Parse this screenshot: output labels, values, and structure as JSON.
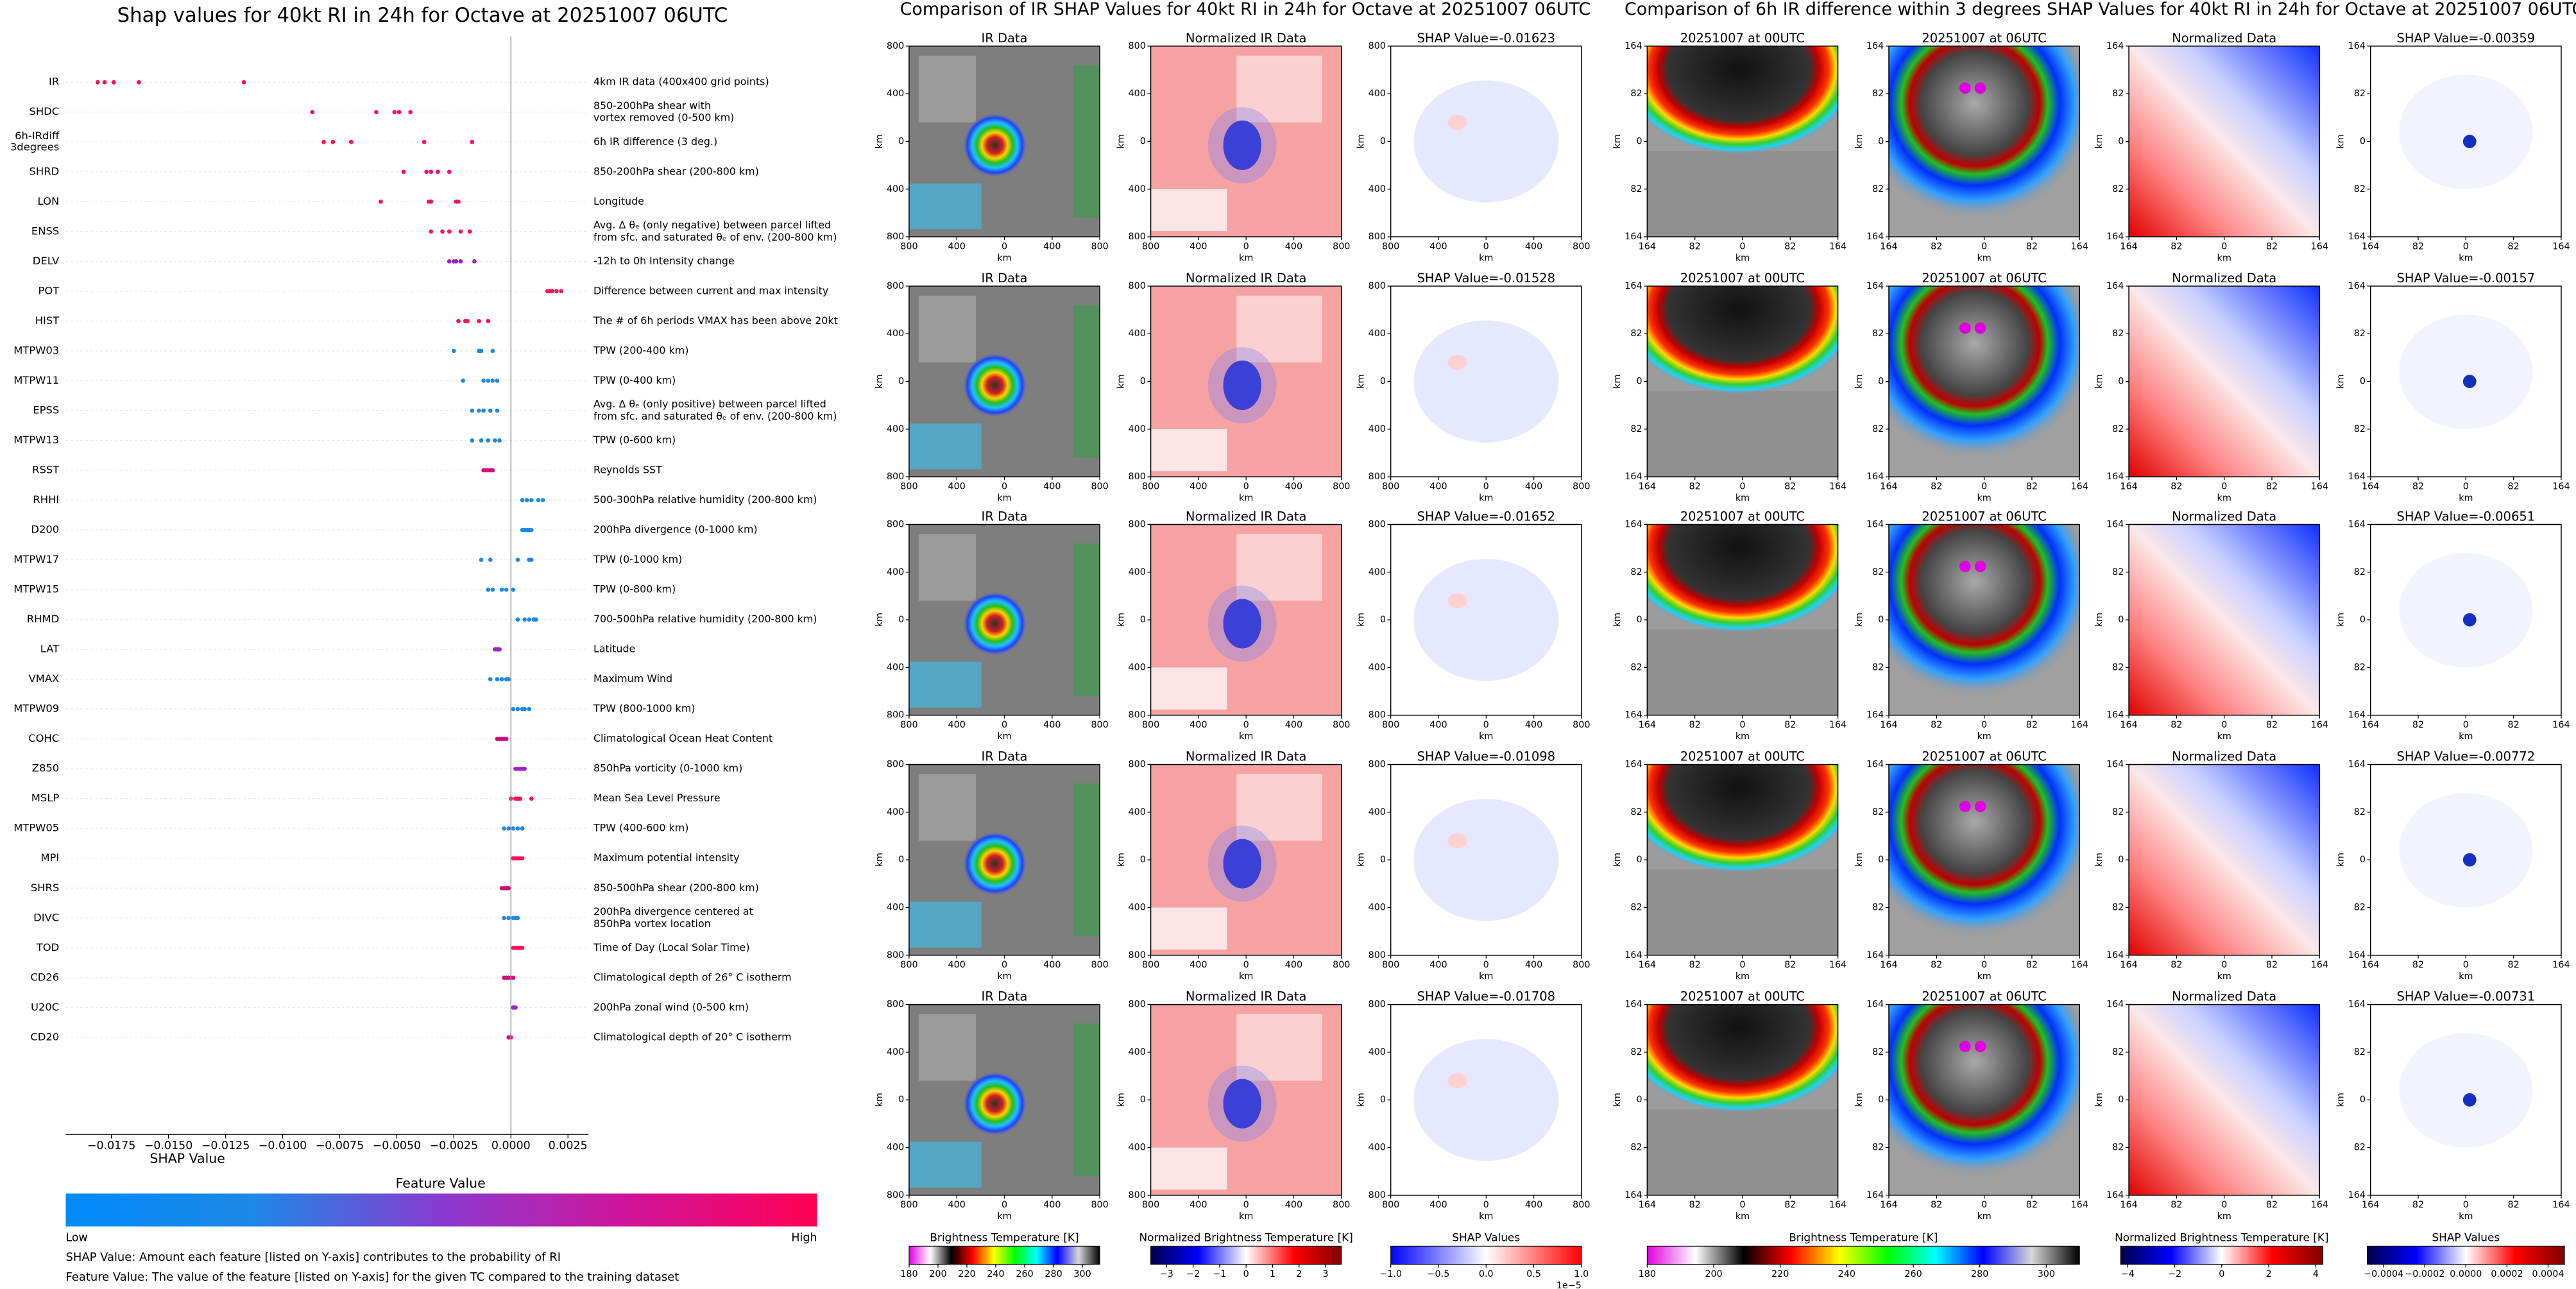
{
  "chart_data": [
    {
      "type": "beeswarm",
      "title": "Shap values for 40kt RI in 24h for Octave at 20251007 06UTC",
      "xlabel": "SHAP Value",
      "xlim": [
        -0.0195,
        0.0034
      ],
      "xticks": [
        {
          "value": -0.0175,
          "label": "−0.0175"
        },
        {
          "value": -0.015,
          "label": "−0.0150"
        },
        {
          "value": -0.0125,
          "label": "−0.0125"
        },
        {
          "value": -0.01,
          "label": "−0.0100"
        },
        {
          "value": -0.0075,
          "label": "−0.0075"
        },
        {
          "value": -0.005,
          "label": "−0.0050"
        },
        {
          "value": -0.0025,
          "label": "−0.0025"
        },
        {
          "value": 0,
          "label": "0.0000"
        },
        {
          "value": 0.0025,
          "label": "0.0025"
        }
      ],
      "features": [
        {
          "name": [
            "IR"
          ],
          "description": [
            "4km IR data (400x400 grid points)"
          ],
          "color": "#ff0d57",
          "values": [
            -0.0181,
            -0.0178,
            -0.0174,
            -0.0163,
            -0.0117
          ]
        },
        {
          "name": [
            "SHDC"
          ],
          "description": [
            "850-200hPa shear with",
            "vortex removed (0-500 km)"
          ],
          "color": "#ff0d57",
          "values": [
            -0.0087,
            -0.0059,
            -0.0051,
            -0.0049,
            -0.0044
          ]
        },
        {
          "name": [
            "6h-IRdiff",
            "3degrees"
          ],
          "description": [
            "6h IR difference (3 deg.)"
          ],
          "color": "#ff0d57",
          "values": [
            -0.0082,
            -0.0078,
            -0.007,
            -0.0038,
            -0.0017
          ]
        },
        {
          "name": [
            "SHRD"
          ],
          "description": [
            "850-200hPa shear (200-800 km)"
          ],
          "color": "#f5077a",
          "values": [
            -0.0047,
            -0.0037,
            -0.0035,
            -0.0032,
            -0.0027
          ]
        },
        {
          "name": [
            "LON"
          ],
          "description": [
            "Longitude"
          ],
          "color": "#ff0d57",
          "values": [
            -0.0057,
            -0.0036,
            -0.0035,
            -0.0024,
            -0.0023
          ]
        },
        {
          "name": [
            "ENSS"
          ],
          "description": [
            "Avg. Δ θₑ (only negative) between parcel lifted",
            "from sfc. and saturated θₑ of env. (200-800 km)"
          ],
          "color": "#ff0d57",
          "values": [
            -0.0035,
            -0.003,
            -0.0027,
            -0.0022,
            -0.0018
          ]
        },
        {
          "name": [
            "DELV"
          ],
          "description": [
            "-12h to 0h Intensity change"
          ],
          "color": "#a020d0",
          "values": [
            -0.0027,
            -0.0025,
            -0.0024,
            -0.0022,
            -0.0016
          ]
        },
        {
          "name": [
            "POT"
          ],
          "description": [
            "Difference between current and max intensity"
          ],
          "color": "#ff0d57",
          "values": [
            0.0016,
            0.0017,
            0.0018,
            0.002,
            0.0022
          ]
        },
        {
          "name": [
            "HIST"
          ],
          "description": [
            "The # of 6h periods VMAX has been above 20kt"
          ],
          "color": "#ff0d57",
          "values": [
            -0.0023,
            -0.002,
            -0.0019,
            -0.0014,
            -0.001
          ]
        },
        {
          "name": [
            "MTPW03"
          ],
          "description": [
            "TPW (200-400 km)"
          ],
          "color": "#1e88e5",
          "values": [
            -0.0025,
            -0.0014,
            -0.0014,
            -0.0013,
            -0.0008
          ]
        },
        {
          "name": [
            "MTPW11"
          ],
          "description": [
            "TPW (0-400 km)"
          ],
          "color": "#1e88e5",
          "values": [
            -0.0021,
            -0.0012,
            -0.001,
            -0.0008,
            -0.0006
          ]
        },
        {
          "name": [
            "EPSS"
          ],
          "description": [
            "Avg. Δ θₑ (only positive) between parcel lifted",
            "from sfc. and saturated θₑ of env. (200-800 km)"
          ],
          "color": "#1e88e5",
          "values": [
            -0.0017,
            -0.0014,
            -0.0012,
            -0.0009,
            -0.0006
          ]
        },
        {
          "name": [
            "MTPW13"
          ],
          "description": [
            "TPW (0-600 km)"
          ],
          "color": "#1e88e5",
          "values": [
            -0.0017,
            -0.0013,
            -0.001,
            -0.0007,
            -0.0005
          ]
        },
        {
          "name": [
            "RSST"
          ],
          "description": [
            "Reynolds SST"
          ],
          "color": "#d6087e",
          "values": [
            -0.0012,
            -0.0011,
            -0.001,
            -0.0009,
            -0.0008
          ]
        },
        {
          "name": [
            "RHHI"
          ],
          "description": [
            "500-300hPa relative humidity (200-800 km)"
          ],
          "color": "#1e88e5",
          "values": [
            0.0005,
            0.0007,
            0.0009,
            0.0012,
            0.0014
          ]
        },
        {
          "name": [
            "D200"
          ],
          "description": [
            "200hPa divergence (0-1000 km)"
          ],
          "color": "#1e88e5",
          "values": [
            0.0005,
            0.0006,
            0.0007,
            0.0008,
            0.0009
          ]
        },
        {
          "name": [
            "MTPW17"
          ],
          "description": [
            "TPW (0-1000 km)"
          ],
          "color": "#1e88e5",
          "values": [
            -0.0013,
            -0.0009,
            0.0003,
            0.0008,
            0.0009
          ]
        },
        {
          "name": [
            "MTPW15"
          ],
          "description": [
            "TPW (0-800 km)"
          ],
          "color": "#1e88e5",
          "values": [
            -0.001,
            -0.0008,
            -0.0004,
            -0.0002,
            0.0001
          ]
        },
        {
          "name": [
            "RHMD"
          ],
          "description": [
            "700-500hPa relative humidity (200-800 km)"
          ],
          "color": "#1e88e5",
          "values": [
            0.0003,
            0.0006,
            0.0008,
            0.001,
            0.0011
          ]
        },
        {
          "name": [
            "LAT"
          ],
          "description": [
            "Latitude"
          ],
          "color": "#a020d0",
          "values": [
            -0.0007,
            -0.0006,
            -0.0006,
            -0.0005,
            -0.0005
          ]
        },
        {
          "name": [
            "VMAX"
          ],
          "description": [
            "Maximum Wind"
          ],
          "color": "#1e88e5",
          "values": [
            -0.0009,
            -0.0006,
            -0.0004,
            -0.0002,
            -0.0001
          ]
        },
        {
          "name": [
            "MTPW09"
          ],
          "description": [
            "TPW (800-1000 km)"
          ],
          "color": "#1e88e5",
          "values": [
            0.0001,
            0.0003,
            0.0005,
            0.0006,
            0.0008
          ]
        },
        {
          "name": [
            "COHC"
          ],
          "description": [
            "Climatological Ocean Heat Content"
          ],
          "color": "#d6087e",
          "values": [
            -0.0006,
            -0.0005,
            -0.0004,
            -0.0003,
            -0.0002
          ]
        },
        {
          "name": [
            "Z850"
          ],
          "description": [
            "850hPa vorticity (0-1000 km)"
          ],
          "color": "#a020d0",
          "values": [
            0.0002,
            0.0003,
            0.0004,
            0.0005,
            0.0006
          ]
        },
        {
          "name": [
            "MSLP"
          ],
          "description": [
            "Mean Sea Level Pressure"
          ],
          "color": "#ff0d57",
          "values": [
            0.0,
            0.0002,
            0.0003,
            0.0004,
            0.0009
          ]
        },
        {
          "name": [
            "MTPW05"
          ],
          "description": [
            "TPW (400-600 km)"
          ],
          "color": "#1e88e5",
          "values": [
            -0.0003,
            -0.0001,
            0.0001,
            0.0003,
            0.0005
          ]
        },
        {
          "name": [
            "MPI"
          ],
          "description": [
            "Maximum potential intensity"
          ],
          "color": "#ff0d57",
          "values": [
            0.0001,
            0.0002,
            0.0003,
            0.0004,
            0.0005
          ]
        },
        {
          "name": [
            "SHRS"
          ],
          "description": [
            "850-500hPa shear (200-800 km)"
          ],
          "color": "#d6087e",
          "values": [
            -0.0004,
            -0.0003,
            -0.0002,
            -0.0002,
            -0.0001
          ]
        },
        {
          "name": [
            "DIVC"
          ],
          "description": [
            "200hPa divergence centered at",
            "850hPa vortex location"
          ],
          "color": "#1e88e5",
          "values": [
            -0.0003,
            -0.0001,
            0.0001,
            0.0002,
            0.0003
          ]
        },
        {
          "name": [
            "TOD"
          ],
          "description": [
            "Time of Day (Local Solar Time)"
          ],
          "color": "#ff0d57",
          "values": [
            0.0001,
            0.0002,
            0.0003,
            0.0004,
            0.0005
          ]
        },
        {
          "name": [
            "CD26"
          ],
          "description": [
            "Climatological depth of 26° C isotherm"
          ],
          "color": "#d6087e",
          "values": [
            -0.0003,
            -0.0002,
            -0.0001,
            0.0,
            0.0001
          ]
        },
        {
          "name": [
            "U20C"
          ],
          "description": [
            "200hPa zonal wind (0-500 km)"
          ],
          "color": "#a020d0",
          "values": [
            0.0001,
            0.0001,
            0.0002,
            0.0002,
            0.0002
          ]
        },
        {
          "name": [
            "CD20"
          ],
          "description": [
            "Climatological depth of 20° C isotherm"
          ],
          "color": "#d6087e",
          "values": [
            -0.0001,
            -0.0001,
            0.0,
            0.0,
            0.0
          ]
        }
      ],
      "colorbar": {
        "label": "Feature Value",
        "low": "Low",
        "high": "High",
        "colors": [
          "#008bfb",
          "#1e88e5",
          "#8a3ad0",
          "#d0149a",
          "#ff0052"
        ]
      },
      "notes": [
        "SHAP Value: Amount each feature [listed on Y-axis] contributes to the probability of RI",
        "Feature Value: The value of the feature [listed on Y-axis] for the given TC compared to the training dataset"
      ]
    },
    {
      "type": "image_grid",
      "title": "Comparison of IR SHAP Values for 40kt RI in 24h for Octave at 20251007 06UTC",
      "rows": [
        [
          "IR Data",
          "Normalized IR Data",
          "SHAP Value=-0.01623"
        ],
        [
          "IR Data",
          "Normalized IR Data",
          "SHAP Value=-0.01528"
        ],
        [
          "IR Data",
          "Normalized IR Data",
          "SHAP Value=-0.01652"
        ],
        [
          "IR Data",
          "Normalized IR Data",
          "SHAP Value=-0.01098"
        ],
        [
          "IR Data",
          "Normalized IR Data",
          "SHAP Value=-0.01708"
        ]
      ],
      "xlabel": "km",
      "ylabel": "km",
      "xlim": [
        -800,
        800
      ],
      "ylim": [
        -800,
        800
      ],
      "xticks": [
        {
          "value": -800,
          "label": "800"
        },
        {
          "value": -400,
          "label": "400"
        },
        0,
        400,
        800
      ],
      "yticks": [
        800,
        400,
        0,
        {
          "value": -400,
          "label": "400"
        },
        {
          "value": -800,
          "label": "800"
        }
      ],
      "colorbars": [
        {
          "label": "Brightness Temperature [K]",
          "lim": [
            180,
            312
          ],
          "ticks": [
            180,
            200,
            220,
            240,
            260,
            280,
            300
          ],
          "colors": [
            "#e000e0",
            "#ffffff",
            "#000000",
            "#ff0000",
            "#ffff00",
            "#00ff00",
            "#00ffff",
            "#0000ff",
            "#d8d8d8",
            "#000000"
          ]
        },
        {
          "label": "Normalized Brightness Temperature [K]",
          "lim": [
            -3.6,
            3.6
          ],
          "ticks": [
            {
              "value": -3,
              "label": "−3"
            },
            {
              "value": -2,
              "label": "−2"
            },
            {
              "value": -1,
              "label": "−1"
            },
            0,
            1,
            2,
            3
          ],
          "colors": [
            "#00004c",
            "#0000ff",
            "#ffffff",
            "#ff0000",
            "#800000"
          ]
        },
        {
          "label": "SHAP Values",
          "lim": [
            -1,
            1
          ],
          "ticks": [
            {
              "value": -1,
              "label": "−1.0"
            },
            {
              "value": -0.5,
              "label": "−0.5"
            },
            {
              "value": 0,
              "label": "0.0"
            },
            0.5,
            {
              "value": 1,
              "label": "1.0"
            }
          ],
          "offset_label": "1e−5",
          "colors": [
            "#0000ff",
            "#ffffff",
            "#ff0000"
          ]
        }
      ]
    },
    {
      "type": "image_grid",
      "title": "Comparison of 6h IR difference within 3 degrees SHAP Values for 40kt RI in 24h for Octave at 20251007 06UTC",
      "rows": [
        [
          "20251007 at 00UTC",
          "20251007 at 06UTC",
          "Normalized Data",
          "SHAP Value=-0.00359"
        ],
        [
          "20251007 at 00UTC",
          "20251007 at 06UTC",
          "Normalized Data",
          "SHAP Value=-0.00157"
        ],
        [
          "20251007 at 00UTC",
          "20251007 at 06UTC",
          "Normalized Data",
          "SHAP Value=-0.00651"
        ],
        [
          "20251007 at 00UTC",
          "20251007 at 06UTC",
          "Normalized Data",
          "SHAP Value=-0.00772"
        ],
        [
          "20251007 at 00UTC",
          "20251007 at 06UTC",
          "Normalized Data",
          "SHAP Value=-0.00731"
        ]
      ],
      "xlabel": "km",
      "ylabel": "km",
      "xlim": [
        -164,
        164
      ],
      "ylim": [
        -164,
        164
      ],
      "xticks": [
        {
          "value": -164,
          "label": "164"
        },
        {
          "value": -82,
          "label": "82"
        },
        0,
        82,
        164
      ],
      "yticks": [
        164,
        82,
        0,
        {
          "value": -82,
          "label": "82"
        },
        {
          "value": -164,
          "label": "164"
        }
      ],
      "colorbars": [
        {
          "label": "Brightness Temperature [K]",
          "lim": [
            180,
            310
          ],
          "ticks": [
            180,
            200,
            220,
            240,
            260,
            280,
            300
          ],
          "colors": [
            "#e000e0",
            "#ffffff",
            "#000000",
            "#ff0000",
            "#ffff00",
            "#00ff00",
            "#00ffff",
            "#0000ff",
            "#d8d8d8",
            "#000000"
          ]
        },
        {
          "label": "Normalized Brightness Temperature [K]",
          "lim": [
            -4.3,
            4.3
          ],
          "ticks": [
            {
              "value": -4,
              "label": "−4"
            },
            {
              "value": -2,
              "label": "−2"
            },
            0,
            2,
            4
          ],
          "colors": [
            "#00004c",
            "#0000ff",
            "#ffffff",
            "#ff0000",
            "#800000"
          ]
        },
        {
          "label": "SHAP Values",
          "lim": [
            -0.00048,
            0.00048
          ],
          "ticks": [
            {
              "value": -0.0004,
              "label": "−0.0004"
            },
            {
              "value": -0.0002,
              "label": "−0.0002"
            },
            {
              "value": 0,
              "label": "0.0000"
            },
            {
              "value": 0.0002,
              "label": "0.0002"
            },
            {
              "value": 0.0004,
              "label": "0.0004"
            }
          ],
          "colors": [
            "#00004c",
            "#0000ff",
            "#ffffff",
            "#ff0000",
            "#800000"
          ]
        }
      ]
    }
  ]
}
